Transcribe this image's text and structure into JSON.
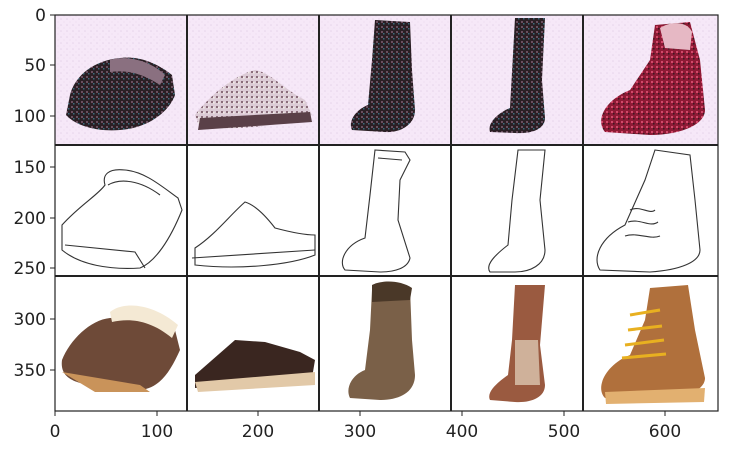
{
  "figure": {
    "x_ticks": [
      "0",
      "100",
      "200",
      "300",
      "400",
      "500",
      "600"
    ],
    "y_ticks": [
      "0",
      "50",
      "100",
      "150",
      "200",
      "250",
      "300",
      "350"
    ],
    "grid": {
      "rows": [
        "generated",
        "edge-sketch",
        "real-photo"
      ],
      "columns": [
        "clog",
        "slide-sandal",
        "tall-boot",
        "cowboy-boot",
        "hiking-boot"
      ]
    },
    "colors": {
      "generated_background": "#f6e8f8",
      "cell_divider": "#222222",
      "clog_brown": "#6e4a38",
      "sandal_dark": "#3a2620",
      "boot_brown": "#7a6048",
      "cowboy_boot": "#9a5a40",
      "hiking_tan": "#b0703c",
      "hiking_laces": "#e8b020",
      "generated_red": "#b02040"
    }
  }
}
